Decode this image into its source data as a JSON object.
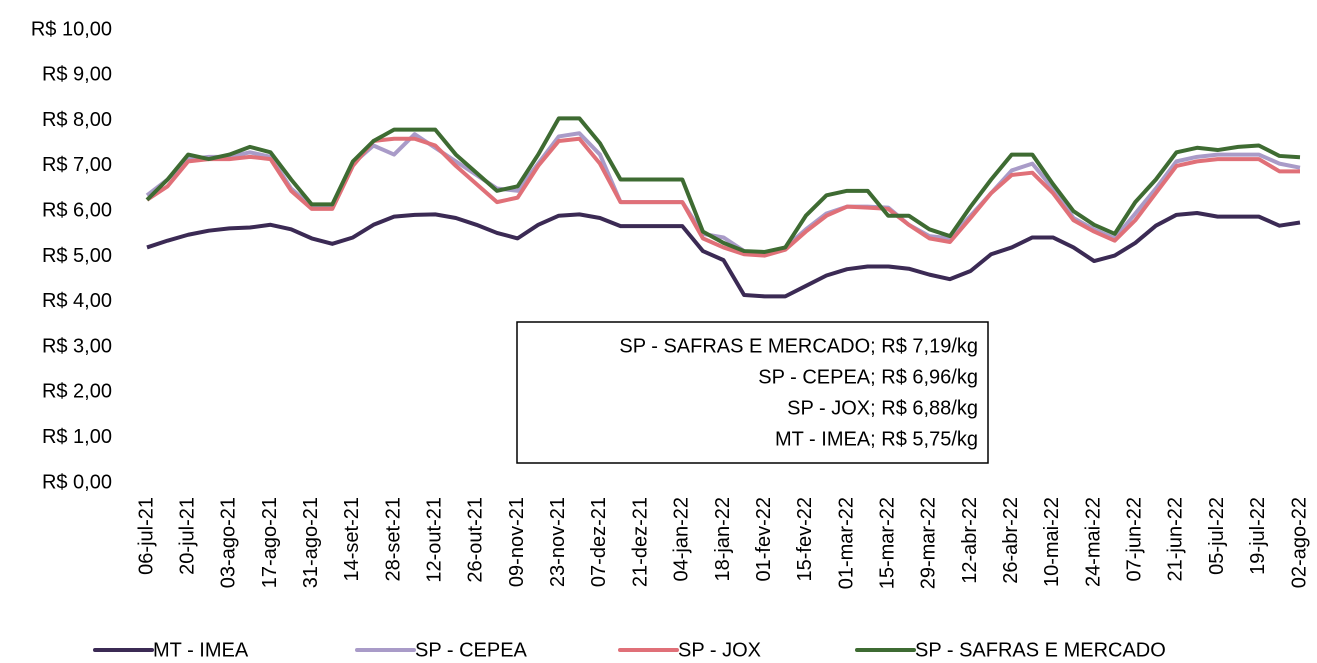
{
  "chart_data": {
    "type": "line",
    "categories": [
      "06-jul-21",
      null,
      "20-jul-21",
      null,
      "03-ago-21",
      null,
      "17-ago-21",
      null,
      "31-ago-21",
      null,
      "14-set-21",
      null,
      "28-set-21",
      null,
      "12-out-21",
      null,
      "26-out-21",
      null,
      "09-nov-21",
      null,
      "23-nov-21",
      null,
      "07-dez-21",
      null,
      "21-dez-21",
      null,
      "04-jan-22",
      null,
      "18-jan-22",
      null,
      "01-fev-22",
      null,
      "15-fev-22",
      null,
      "01-mar-22",
      null,
      "15-mar-22",
      null,
      "29-mar-22",
      null,
      "12-abr-22",
      null,
      "26-abr-22",
      null,
      "10-mai-22",
      null,
      "24-mai-22",
      null,
      "07-jun-22",
      null,
      "21-jun-22",
      null,
      "05-jul-22",
      null,
      "19-jul-22",
      null,
      "02-ago-22"
    ],
    "series": [
      {
        "name": "MT - IMEA",
        "color": "#3b2a54",
        "values": [
          5.2,
          5.35,
          5.48,
          5.57,
          5.62,
          5.64,
          5.7,
          5.6,
          5.4,
          5.28,
          5.42,
          5.7,
          5.88,
          5.92,
          5.93,
          5.85,
          5.7,
          5.52,
          5.4,
          5.7,
          5.9,
          5.93,
          5.85,
          5.67,
          5.67,
          5.67,
          5.67,
          5.12,
          4.92,
          4.15,
          4.12,
          4.12,
          4.35,
          4.58,
          4.72,
          4.78,
          4.78,
          4.73,
          4.6,
          4.5,
          4.68,
          5.05,
          5.2,
          5.42,
          5.42,
          5.2,
          4.9,
          5.02,
          5.3,
          5.68,
          5.92,
          5.96,
          5.88,
          5.88,
          5.88,
          5.68,
          5.75
        ]
      },
      {
        "name": "SP - CEPEA",
        "color": "#a99bc8",
        "values": [
          6.35,
          6.7,
          7.15,
          7.2,
          7.2,
          7.3,
          7.2,
          6.5,
          6.1,
          6.1,
          7.05,
          7.45,
          7.25,
          7.7,
          7.4,
          7.1,
          6.8,
          6.5,
          6.45,
          7.05,
          7.65,
          7.72,
          7.25,
          6.2,
          6.2,
          6.2,
          6.2,
          5.5,
          5.42,
          5.12,
          5.05,
          5.2,
          5.6,
          5.95,
          6.1,
          6.1,
          6.08,
          5.7,
          5.45,
          5.4,
          5.9,
          6.4,
          6.9,
          7.05,
          6.5,
          5.85,
          5.6,
          5.4,
          5.95,
          6.5,
          7.1,
          7.2,
          7.25,
          7.25,
          7.25,
          7.05,
          6.96
        ]
      },
      {
        "name": "SP - JOX",
        "color": "#e07078",
        "values": [
          6.25,
          6.55,
          7.1,
          7.15,
          7.15,
          7.2,
          7.15,
          6.45,
          6.05,
          6.05,
          7.0,
          7.55,
          7.6,
          7.6,
          7.45,
          7.0,
          6.6,
          6.2,
          6.3,
          7.0,
          7.55,
          7.6,
          7.05,
          6.2,
          6.2,
          6.2,
          6.2,
          5.4,
          5.2,
          5.05,
          5.02,
          5.15,
          5.55,
          5.9,
          6.1,
          6.08,
          6.05,
          5.7,
          5.4,
          5.32,
          5.85,
          6.4,
          6.8,
          6.85,
          6.4,
          5.8,
          5.55,
          5.35,
          5.8,
          6.4,
          7.0,
          7.1,
          7.15,
          7.15,
          7.15,
          6.88,
          6.88
        ]
      },
      {
        "name": "SP - SAFRAS E MERCADO",
        "color": "#3e6b32",
        "values": [
          6.25,
          6.7,
          7.25,
          7.15,
          7.25,
          7.42,
          7.3,
          6.7,
          6.15,
          6.15,
          7.1,
          7.55,
          7.8,
          7.8,
          7.8,
          7.25,
          6.85,
          6.45,
          6.55,
          7.25,
          8.05,
          8.05,
          7.5,
          6.7,
          6.7,
          6.7,
          6.7,
          5.55,
          5.3,
          5.12,
          5.1,
          5.2,
          5.9,
          6.35,
          6.45,
          6.45,
          5.9,
          5.9,
          5.6,
          5.45,
          6.1,
          6.7,
          7.25,
          7.25,
          6.6,
          6.0,
          5.7,
          5.5,
          6.2,
          6.7,
          7.3,
          7.4,
          7.35,
          7.42,
          7.45,
          7.22,
          7.19
        ]
      }
    ],
    "ylim": [
      0,
      10
    ],
    "yticks": [
      {
        "value": 0,
        "label": "R$ 0,00"
      },
      {
        "value": 1,
        "label": "R$ 1,00"
      },
      {
        "value": 2,
        "label": "R$ 2,00"
      },
      {
        "value": 3,
        "label": "R$ 3,00"
      },
      {
        "value": 4,
        "label": "R$ 4,00"
      },
      {
        "value": 5,
        "label": "R$ 5,00"
      },
      {
        "value": 6,
        "label": "R$ 6,00"
      },
      {
        "value": 7,
        "label": "R$ 7,00"
      },
      {
        "value": 8,
        "label": "R$ 8,00"
      },
      {
        "value": 9,
        "label": "R$ 9,00"
      },
      {
        "value": 10,
        "label": "R$ 10,00"
      }
    ],
    "annotations": [
      "SP - SAFRAS E MERCADO; R$ 7,19/kg",
      "SP - CEPEA; R$ 6,96/kg",
      "SP - JOX; R$ 6,88/kg",
      "MT - IMEA; R$ 5,75/kg"
    ],
    "grid": false,
    "legend": "bottom"
  }
}
